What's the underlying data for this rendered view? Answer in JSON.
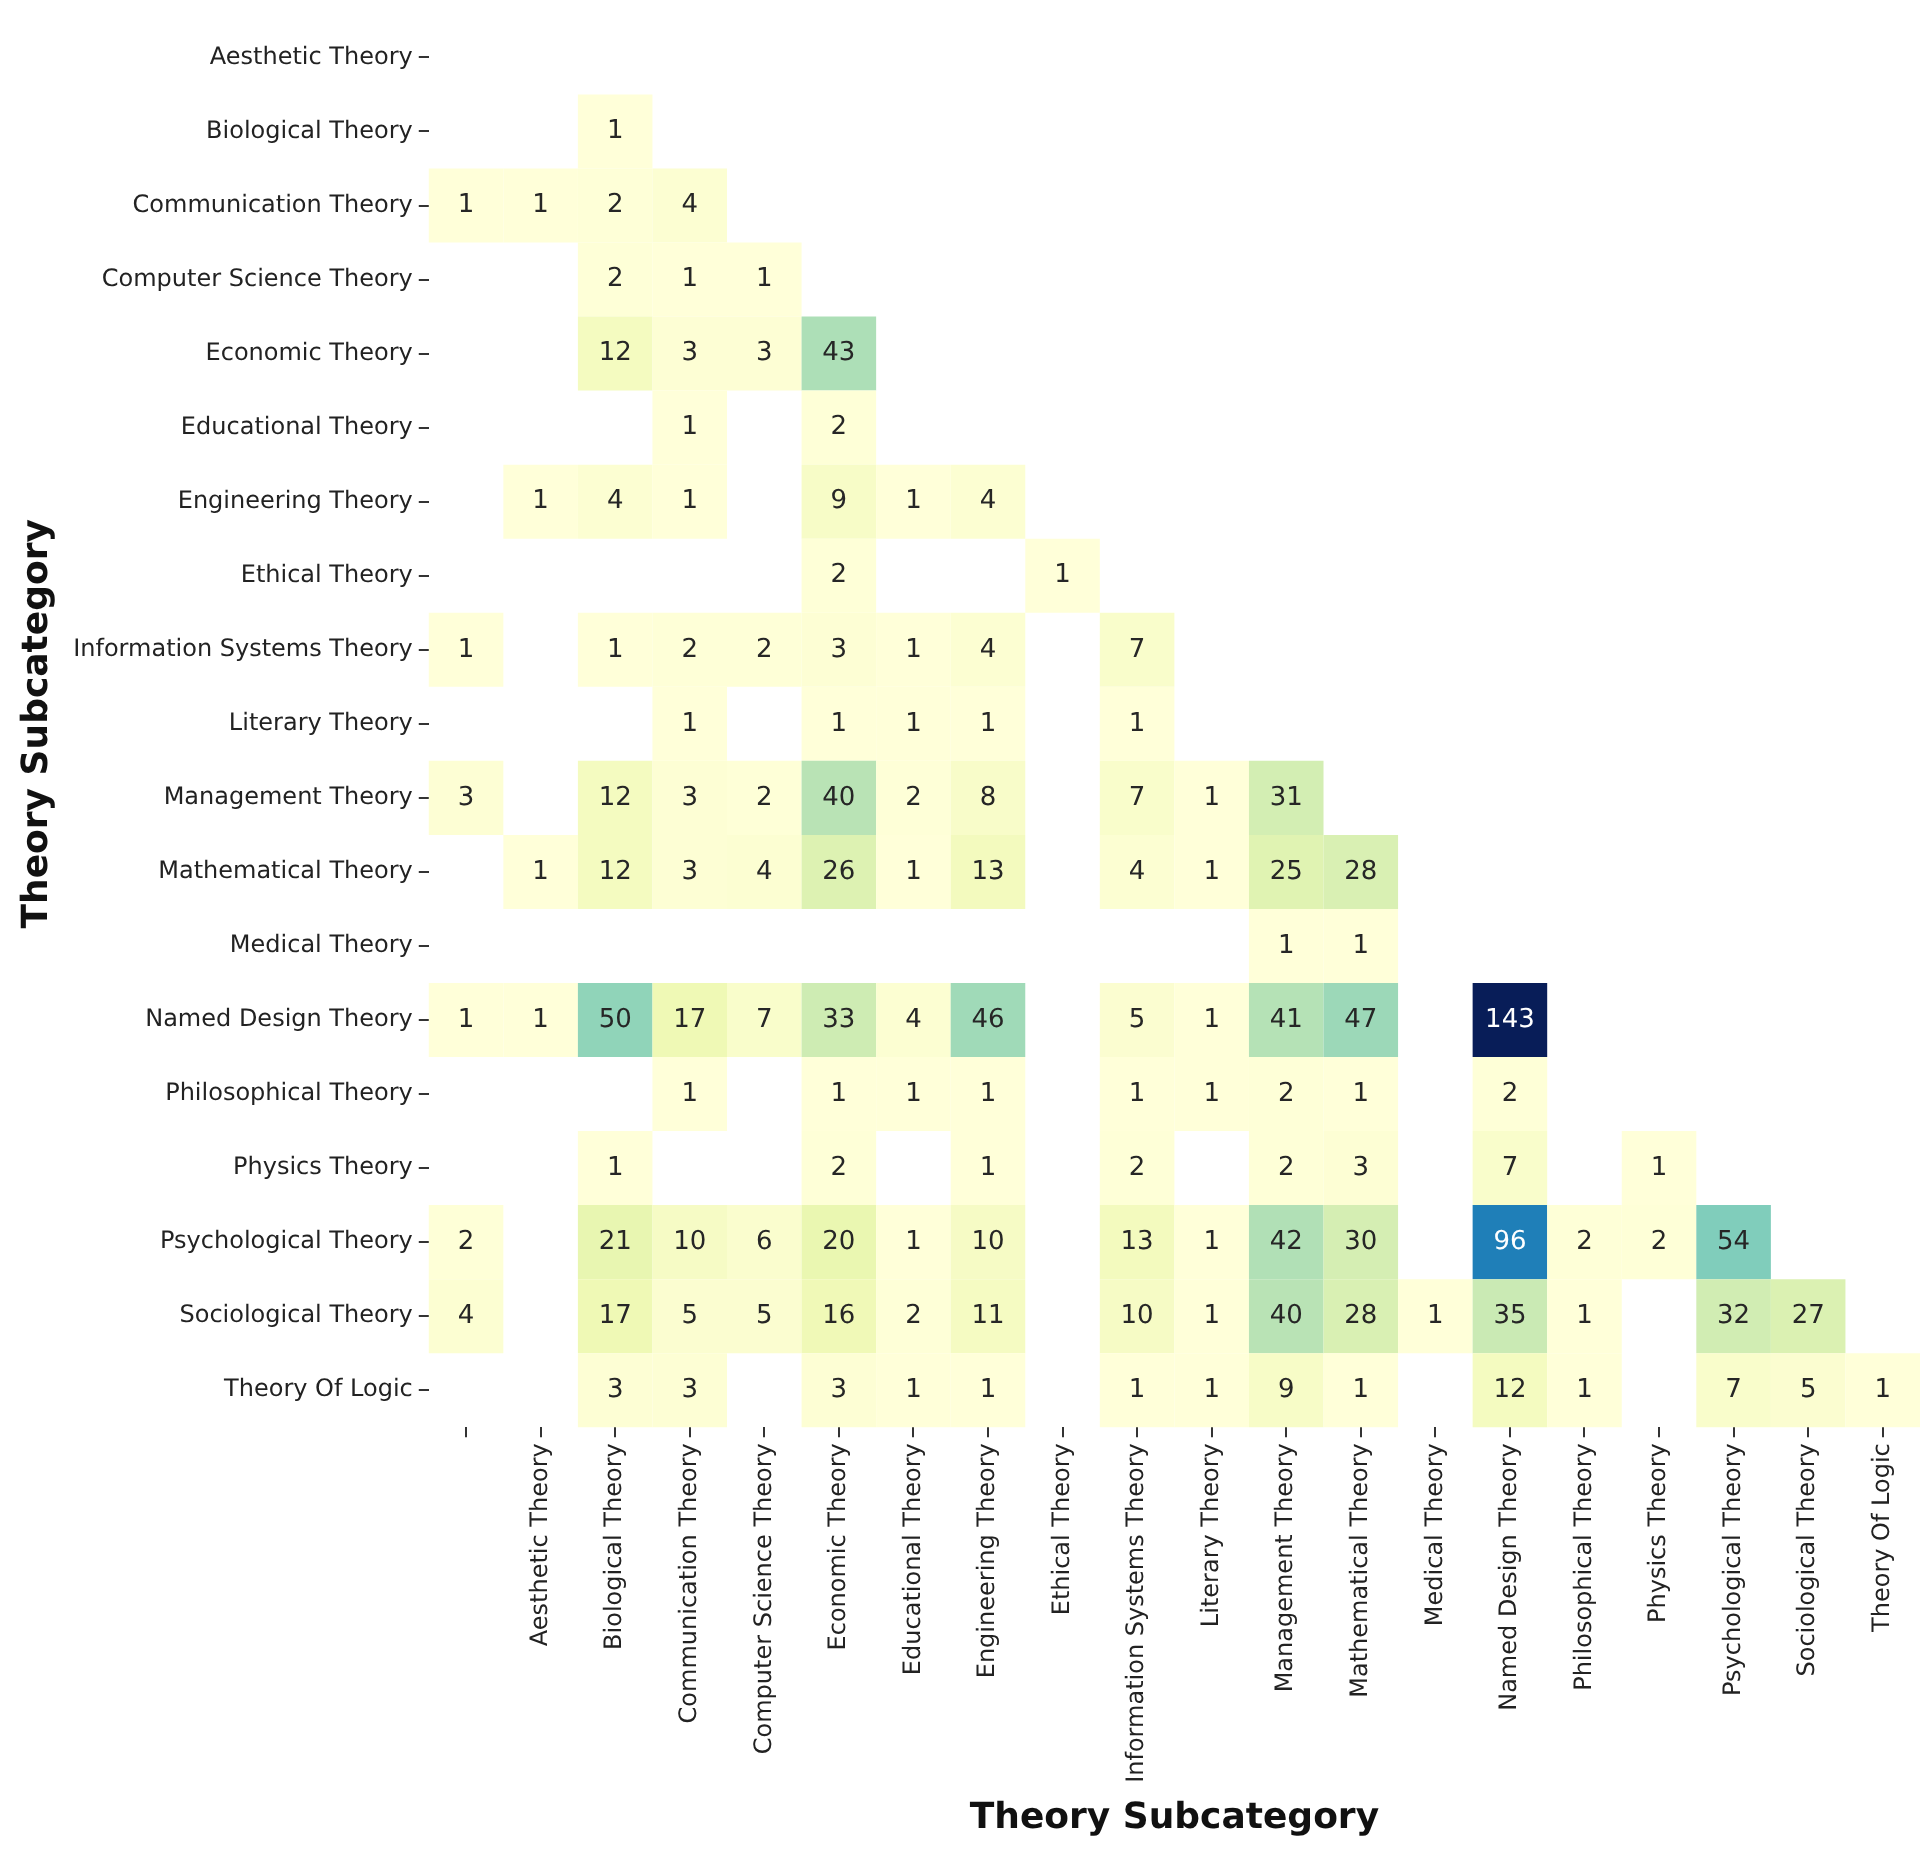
{
  "chart_data": {
    "type": "heatmap",
    "xlabel": "Theory Subcategory",
    "ylabel": "Theory Subcategory",
    "categories": [
      null,
      "Aesthetic Theory",
      "Biological Theory",
      "Communication Theory",
      "Computer Science Theory",
      "Economic Theory",
      "Educational Theory",
      "Engineering Theory",
      "Ethical Theory",
      "Information Systems Theory",
      "Literary Theory",
      "Management Theory",
      "Mathematical Theory",
      "Medical Theory",
      "Named Design Theory",
      "Philosophical Theory",
      "Physics Theory",
      "Psychological Theory",
      "Sociological Theory",
      "Theory Of Logic"
    ],
    "y_categories": [
      "Aesthetic Theory",
      "Biological Theory",
      "Communication Theory",
      "Computer Science Theory",
      "Economic Theory",
      "Educational Theory",
      "Engineering Theory",
      "Ethical Theory",
      "Information Systems Theory",
      "Literary Theory",
      "Management Theory",
      "Mathematical Theory",
      "Medical Theory",
      "Named Design Theory",
      "Philosophical Theory",
      "Physics Theory",
      "Psychological Theory",
      "Sociological Theory",
      "Theory Of Logic"
    ],
    "cells": [
      [
        null,
        null,
        null,
        null,
        null,
        null,
        null,
        null,
        null,
        null,
        null,
        null,
        null,
        null,
        null,
        null,
        null,
        null,
        null,
        null
      ],
      [
        null,
        null,
        1,
        null,
        null,
        null,
        null,
        null,
        null,
        null,
        null,
        null,
        null,
        null,
        null,
        null,
        null,
        null,
        null,
        null
      ],
      [
        1,
        1,
        2,
        4,
        null,
        null,
        null,
        null,
        null,
        null,
        null,
        null,
        null,
        null,
        null,
        null,
        null,
        null,
        null,
        null
      ],
      [
        null,
        null,
        2,
        1,
        1,
        null,
        null,
        null,
        null,
        null,
        null,
        null,
        null,
        null,
        null,
        null,
        null,
        null,
        null,
        null
      ],
      [
        null,
        null,
        12,
        3,
        3,
        43,
        null,
        null,
        null,
        null,
        null,
        null,
        null,
        null,
        null,
        null,
        null,
        null,
        null,
        null
      ],
      [
        null,
        null,
        null,
        1,
        null,
        2,
        null,
        null,
        null,
        null,
        null,
        null,
        null,
        null,
        null,
        null,
        null,
        null,
        null,
        null
      ],
      [
        null,
        1,
        4,
        1,
        null,
        9,
        1,
        4,
        null,
        null,
        null,
        null,
        null,
        null,
        null,
        null,
        null,
        null,
        null,
        null
      ],
      [
        null,
        null,
        null,
        null,
        null,
        2,
        null,
        null,
        1,
        null,
        null,
        null,
        null,
        null,
        null,
        null,
        null,
        null,
        null,
        null
      ],
      [
        1,
        null,
        1,
        2,
        2,
        3,
        1,
        4,
        null,
        7,
        null,
        null,
        null,
        null,
        null,
        null,
        null,
        null,
        null,
        null
      ],
      [
        null,
        null,
        null,
        1,
        null,
        1,
        1,
        1,
        null,
        1,
        null,
        null,
        null,
        null,
        null,
        null,
        null,
        null,
        null,
        null
      ],
      [
        3,
        null,
        12,
        3,
        2,
        40,
        2,
        8,
        null,
        7,
        1,
        31,
        null,
        null,
        null,
        null,
        null,
        null,
        null,
        null
      ],
      [
        null,
        1,
        12,
        3,
        4,
        26,
        1,
        13,
        null,
        4,
        1,
        25,
        28,
        null,
        null,
        null,
        null,
        null,
        null,
        null
      ],
      [
        null,
        null,
        null,
        null,
        null,
        null,
        null,
        null,
        null,
        null,
        null,
        1,
        1,
        null,
        null,
        null,
        null,
        null,
        null,
        null
      ],
      [
        1,
        1,
        50,
        17,
        7,
        33,
        4,
        46,
        null,
        5,
        1,
        41,
        47,
        null,
        143,
        null,
        null,
        null,
        null,
        null
      ],
      [
        null,
        null,
        null,
        1,
        null,
        1,
        1,
        1,
        null,
        1,
        1,
        2,
        1,
        null,
        2,
        null,
        null,
        null,
        null,
        null
      ],
      [
        null,
        null,
        1,
        null,
        null,
        2,
        null,
        1,
        null,
        2,
        null,
        2,
        3,
        null,
        7,
        null,
        1,
        null,
        null,
        null
      ],
      [
        2,
        null,
        21,
        10,
        6,
        20,
        1,
        10,
        null,
        13,
        1,
        42,
        30,
        null,
        96,
        2,
        2,
        54,
        null,
        null
      ],
      [
        4,
        null,
        17,
        5,
        5,
        16,
        2,
        11,
        null,
        10,
        1,
        40,
        28,
        1,
        35,
        1,
        null,
        32,
        27,
        null
      ],
      [
        null,
        null,
        3,
        3,
        null,
        3,
        1,
        1,
        null,
        1,
        1,
        9,
        1,
        null,
        12,
        1,
        null,
        7,
        5,
        1
      ]
    ],
    "data_labels": true
  }
}
